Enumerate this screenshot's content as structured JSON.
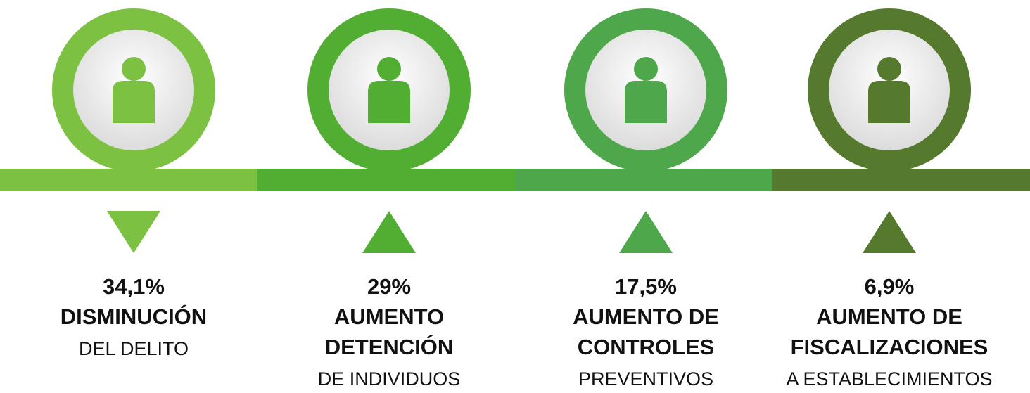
{
  "items": [
    {
      "value": "34,1%",
      "heading": [
        "DISMINUCIÓN"
      ],
      "detail": "DEL DELITO",
      "trend": "down",
      "color": "#7dc143"
    },
    {
      "value": "29%",
      "heading": [
        "AUMENTO",
        "DETENCIÓN"
      ],
      "detail": "DE INDIVIDUOS",
      "trend": "up",
      "color": "#52ae32"
    },
    {
      "value": "17,5%",
      "heading": [
        "AUMENTO DE",
        "CONTROLES"
      ],
      "detail": "PREVENTIVOS",
      "trend": "up",
      "color": "#4ea84b"
    },
    {
      "value": "6,9%",
      "heading": [
        "AUMENTO DE",
        "FISCALIZACIONES"
      ],
      "detail": "A ESTABLECIMIENTOS",
      "trend": "up",
      "color": "#557a2d"
    }
  ]
}
